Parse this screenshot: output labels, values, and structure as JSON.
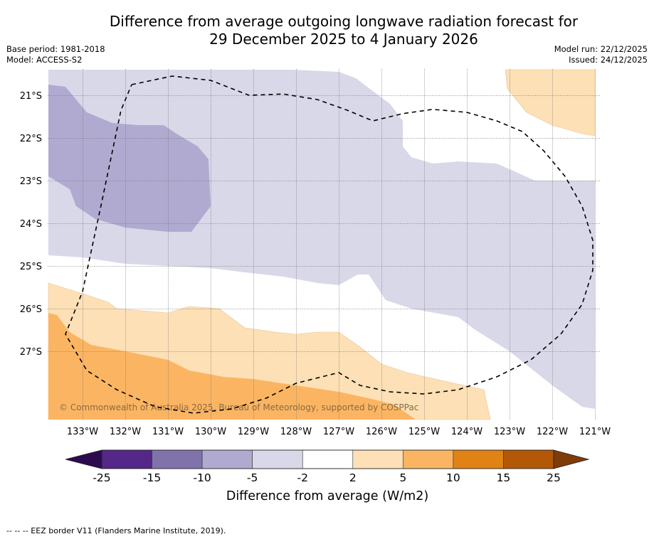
{
  "header": {
    "title_line1": "Difference from average outgoing longwave radiation forecast for",
    "title_line2": "29 December 2025 to 4 January 2026",
    "base_period": "Base period: 1981-2018",
    "model": "Model: ACCESS-S2",
    "model_run": "Model run: 22/12/2025",
    "issued": "Issued: 24/12/2025"
  },
  "map": {
    "extent": {
      "lon_west_min": 120.95,
      "lon_west_max": 133.8,
      "lat_south_min": 20.4,
      "lat_south_max": 28.6
    },
    "lat_ticks": [
      "21°S",
      "22°S",
      "23°S",
      "24°S",
      "25°S",
      "26°S",
      "27°S"
    ],
    "lat_values": [
      21,
      22,
      23,
      24,
      25,
      26,
      27
    ],
    "lon_ticks": [
      "133°W",
      "132°W",
      "131°W",
      "130°W",
      "129°W",
      "128°W",
      "127°W",
      "126°W",
      "125°W",
      "124°W",
      "123°W",
      "122°W",
      "121°W"
    ],
    "lon_values": [
      133,
      132,
      131,
      130,
      129,
      128,
      127,
      126,
      125,
      124,
      123,
      122,
      121
    ],
    "copyright": "© Commonwealth of Australia 2025, Bureau of Meteorology, supported by COSPPac",
    "regions": [
      {
        "name": "anomaly-minus5-to-minus2",
        "category": "-5 to -2",
        "color": "#d8d8e9",
        "outline_lonW_latS": [
          [
            133.8,
            20.4
          ],
          [
            129.5,
            20.4
          ],
          [
            128.1,
            20.4
          ],
          [
            127.0,
            20.45
          ],
          [
            126.6,
            20.6
          ],
          [
            126.2,
            20.9
          ],
          [
            125.8,
            21.2
          ],
          [
            125.5,
            21.6
          ],
          [
            125.5,
            22.2
          ],
          [
            125.3,
            22.45
          ],
          [
            124.8,
            22.6
          ],
          [
            124.2,
            22.55
          ],
          [
            123.3,
            22.6
          ],
          [
            122.4,
            23.0
          ],
          [
            121.0,
            23.0
          ],
          [
            121.0,
            28.35
          ],
          [
            121.3,
            28.3
          ],
          [
            122.0,
            27.8
          ],
          [
            123.0,
            27.0
          ],
          [
            123.8,
            26.5
          ],
          [
            124.2,
            26.2
          ],
          [
            125.3,
            26.0
          ],
          [
            125.9,
            25.8
          ],
          [
            126.3,
            25.2
          ],
          [
            126.55,
            25.2
          ],
          [
            127.0,
            25.45
          ],
          [
            127.5,
            25.4
          ],
          [
            128.3,
            25.25
          ],
          [
            129.2,
            25.15
          ],
          [
            130.0,
            25.05
          ],
          [
            131.0,
            25.0
          ],
          [
            132.0,
            24.95
          ],
          [
            133.0,
            24.8
          ],
          [
            133.8,
            24.75
          ]
        ]
      },
      {
        "name": "anomaly-minus10-to-minus5",
        "category": "-10 to -5",
        "color": "#b0aad0",
        "outline_lonW_latS": [
          [
            133.8,
            20.75
          ],
          [
            133.4,
            20.8
          ],
          [
            132.9,
            21.4
          ],
          [
            132.3,
            21.65
          ],
          [
            131.7,
            21.7
          ],
          [
            131.1,
            21.7
          ],
          [
            130.8,
            21.9
          ],
          [
            130.3,
            22.2
          ],
          [
            130.05,
            22.5
          ],
          [
            130.0,
            23.6
          ],
          [
            130.45,
            24.2
          ],
          [
            131.0,
            24.2
          ],
          [
            132.0,
            24.1
          ],
          [
            132.7,
            23.9
          ],
          [
            133.15,
            23.6
          ],
          [
            133.3,
            23.2
          ],
          [
            133.8,
            22.9
          ]
        ]
      },
      {
        "name": "anomaly-2-to-5-south",
        "category": "2 to 5",
        "color": "#fde0b6",
        "outline_lonW_latS": [
          [
            133.8,
            25.4
          ],
          [
            133.0,
            25.65
          ],
          [
            132.4,
            25.85
          ],
          [
            132.2,
            26.0
          ],
          [
            131.0,
            26.1
          ],
          [
            130.5,
            25.95
          ],
          [
            129.8,
            26.0
          ],
          [
            129.2,
            26.45
          ],
          [
            128.5,
            26.55
          ],
          [
            128.0,
            26.6
          ],
          [
            127.5,
            26.55
          ],
          [
            127.0,
            26.55
          ],
          [
            126.5,
            26.9
          ],
          [
            126.0,
            27.3
          ],
          [
            125.4,
            27.5
          ],
          [
            124.3,
            27.75
          ],
          [
            123.6,
            27.9
          ],
          [
            123.45,
            28.6
          ],
          [
            133.8,
            28.6
          ]
        ]
      },
      {
        "name": "anomaly-5-to-10",
        "category": "5 to 10",
        "color": "#fbb562",
        "outline_lonW_latS": [
          [
            133.8,
            26.1
          ],
          [
            133.6,
            26.15
          ],
          [
            133.3,
            26.55
          ],
          [
            132.8,
            26.85
          ],
          [
            132.0,
            27.0
          ],
          [
            131.0,
            27.2
          ],
          [
            130.5,
            27.45
          ],
          [
            129.7,
            27.6
          ],
          [
            129.0,
            27.65
          ],
          [
            128.0,
            27.8
          ],
          [
            127.0,
            27.95
          ],
          [
            126.3,
            28.1
          ],
          [
            125.7,
            28.25
          ],
          [
            125.2,
            28.6
          ],
          [
            133.8,
            28.6
          ]
        ]
      },
      {
        "name": "anomaly-2-to-5-northeast",
        "category": "2 to 5",
        "color": "#fde0b6",
        "outline_lonW_latS": [
          [
            123.1,
            20.4
          ],
          [
            123.05,
            20.85
          ],
          [
            122.6,
            21.4
          ],
          [
            122.0,
            21.7
          ],
          [
            121.3,
            21.9
          ],
          [
            121.0,
            21.95
          ],
          [
            121.0,
            20.4
          ]
        ]
      }
    ],
    "eez_border_lonW_latS": [
      [
        131.85,
        20.75
      ],
      [
        130.9,
        20.55
      ],
      [
        130.0,
        20.65
      ],
      [
        129.1,
        21.0
      ],
      [
        128.3,
        20.97
      ],
      [
        127.5,
        21.1
      ],
      [
        126.8,
        21.35
      ],
      [
        126.2,
        21.6
      ],
      [
        125.5,
        21.43
      ],
      [
        124.8,
        21.33
      ],
      [
        124.0,
        21.4
      ],
      [
        123.3,
        21.6
      ],
      [
        122.7,
        21.85
      ],
      [
        122.2,
        22.3
      ],
      [
        121.7,
        22.9
      ],
      [
        121.3,
        23.6
      ],
      [
        121.05,
        24.4
      ],
      [
        121.05,
        25.1
      ],
      [
        121.3,
        25.9
      ],
      [
        121.8,
        26.6
      ],
      [
        122.5,
        27.2
      ],
      [
        123.3,
        27.6
      ],
      [
        124.2,
        27.9
      ],
      [
        125.0,
        28.0
      ],
      [
        125.8,
        27.95
      ],
      [
        126.5,
        27.8
      ],
      [
        127.0,
        27.5
      ],
      [
        127.6,
        27.65
      ],
      [
        128.0,
        27.75
      ],
      [
        128.7,
        28.1
      ],
      [
        129.5,
        28.35
      ],
      [
        130.4,
        28.45
      ],
      [
        131.3,
        28.3
      ],
      [
        132.2,
        27.9
      ],
      [
        132.9,
        27.45
      ],
      [
        133.4,
        26.6
      ],
      [
        133.0,
        25.6
      ],
      [
        132.55,
        23.5
      ],
      [
        132.1,
        21.35
      ],
      [
        131.85,
        20.75
      ]
    ]
  },
  "colorbar": {
    "title": "Difference from average (W/m2)",
    "tick_labels": [
      "-25",
      "-15",
      "-10",
      "-5",
      "-2",
      "2",
      "5",
      "10",
      "15",
      "25"
    ],
    "bins": [
      {
        "range": "< -25",
        "color": "#2d0b4f"
      },
      {
        "range": "-25 to -15",
        "color": "#542789"
      },
      {
        "range": "-15 to -10",
        "color": "#8073ac"
      },
      {
        "range": "-10 to -5",
        "color": "#b0aad0"
      },
      {
        "range": "-5 to -2",
        "color": "#d8d8e9"
      },
      {
        "range": "-2 to 2",
        "color": "#ffffff"
      },
      {
        "range": "2 to 5",
        "color": "#fde0b6"
      },
      {
        "range": "5 to 10",
        "color": "#fbb562"
      },
      {
        "range": "10 to 15",
        "color": "#e08214"
      },
      {
        "range": "15 to 25",
        "color": "#b35806"
      },
      {
        "range": "> 25",
        "color": "#7f3b08"
      }
    ]
  },
  "footnote": "--  --  -- EEZ border V11 (Flanders Marine Institute, 2019)."
}
